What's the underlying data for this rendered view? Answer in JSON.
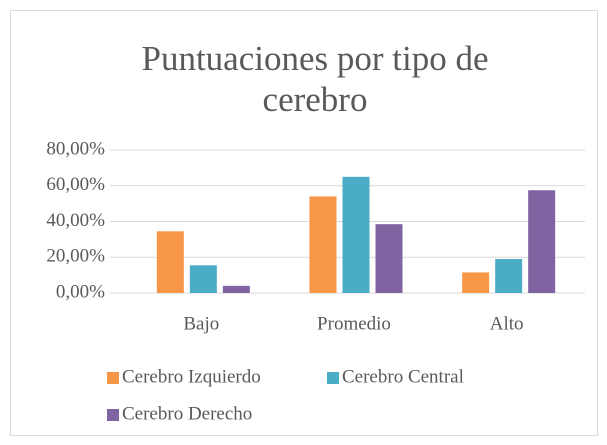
{
  "chart_data": {
    "type": "bar",
    "title": [
      "Puntuaciones por tipo de",
      "cerebro"
    ],
    "categories": [
      "Bajo",
      "Promedio",
      "Alto"
    ],
    "series": [
      {
        "name": "Cerebro Izquierdo",
        "color": "#f79646",
        "values": [
          34.5,
          54,
          11.5
        ]
      },
      {
        "name": "Cerebro Central",
        "color": "#4bacc6",
        "values": [
          15.5,
          65,
          19
        ]
      },
      {
        "name": "Cerebro Derecho",
        "color": "#8064a2",
        "values": [
          4,
          38.5,
          57.5
        ]
      }
    ],
    "ylim": [
      0,
      80
    ],
    "yticks": [
      {
        "value": 0,
        "label": "0,00%"
      },
      {
        "value": 20,
        "label": "20,00%"
      },
      {
        "value": 40,
        "label": "40,00%"
      },
      {
        "value": 60,
        "label": "60,00%"
      },
      {
        "value": 80,
        "label": "80,00%"
      }
    ],
    "grid": true,
    "legend": "bottom"
  }
}
